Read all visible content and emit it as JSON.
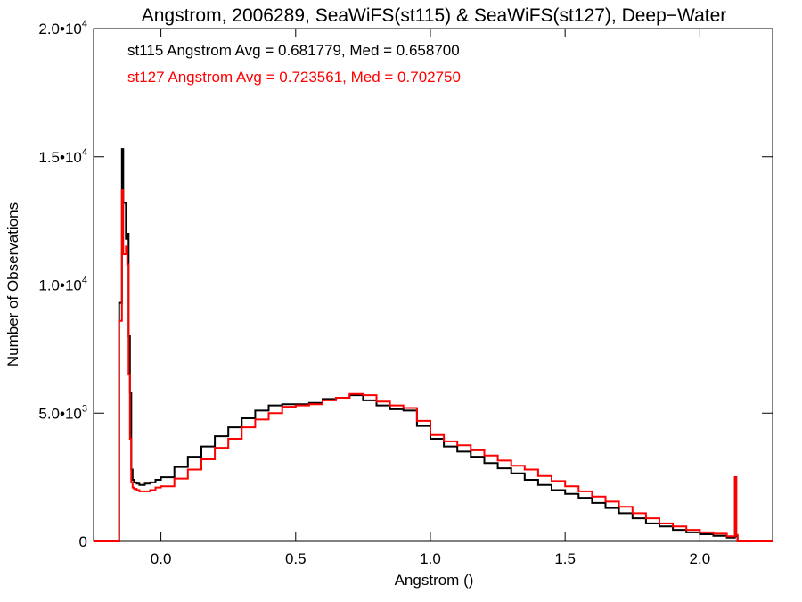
{
  "chart_data": {
    "type": "line",
    "title": "Angstrom, 2006289, SeaWiFS(st115) & SeaWiFS(st127), Deep−Water",
    "xlabel": "Angstrom ()",
    "ylabel": "Number of Observations",
    "xlim": [
      -0.25,
      2.27
    ],
    "ylim": [
      0,
      20000
    ],
    "x_ticks": [
      {
        "value": 0.0,
        "label": "0.0"
      },
      {
        "value": 0.5,
        "label": "0.5"
      },
      {
        "value": 1.0,
        "label": "1.0"
      },
      {
        "value": 1.5,
        "label": "1.5"
      },
      {
        "value": 2.0,
        "label": "2.0"
      }
    ],
    "y_ticks": [
      {
        "value": 0,
        "label": "0",
        "exp": ""
      },
      {
        "value": 5000,
        "label": "5.0•10",
        "exp": "3"
      },
      {
        "value": 10000,
        "label": "1.0•10",
        "exp": "4"
      },
      {
        "value": 15000,
        "label": "1.5•10",
        "exp": "4"
      },
      {
        "value": 20000,
        "label": "2.0•10",
        "exp": "4"
      }
    ],
    "annotations": [
      {
        "text": "st115 Angstrom Avg = 0.681779, Med = 0.658700",
        "color": "#000000"
      },
      {
        "text": "st127 Angstrom Avg = 0.723561, Med = 0.702750",
        "color": "#ff0000"
      }
    ],
    "series": [
      {
        "color": "#000000",
        "x": [
          -0.25,
          -0.16,
          -0.155,
          -0.145,
          -0.14,
          -0.13,
          -0.125,
          -0.12,
          -0.115,
          -0.11,
          -0.105,
          -0.1,
          -0.09,
          -0.08,
          -0.06,
          -0.04,
          -0.02,
          0.0,
          0.05,
          0.1,
          0.15,
          0.2,
          0.25,
          0.3,
          0.35,
          0.4,
          0.45,
          0.5,
          0.55,
          0.6,
          0.65,
          0.7,
          0.75,
          0.8,
          0.85,
          0.9,
          0.95,
          1.0,
          1.05,
          1.1,
          1.15,
          1.2,
          1.25,
          1.3,
          1.35,
          1.4,
          1.45,
          1.5,
          1.55,
          1.6,
          1.65,
          1.7,
          1.75,
          1.8,
          1.85,
          1.9,
          1.95,
          2.0,
          2.05,
          2.1,
          2.13,
          2.135,
          2.14,
          2.145,
          2.27
        ],
        "values": [
          0,
          0,
          9300,
          15300,
          13200,
          11800,
          12000,
          8000,
          5800,
          2800,
          2400,
          2300,
          2250,
          2200,
          2250,
          2300,
          2400,
          2500,
          2900,
          3300,
          3700,
          4100,
          4450,
          4800,
          5100,
          5300,
          5350,
          5350,
          5400,
          5550,
          5600,
          5700,
          5500,
          5300,
          5150,
          5100,
          4500,
          4000,
          3700,
          3500,
          3300,
          3050,
          2850,
          2650,
          2400,
          2200,
          2000,
          1850,
          1700,
          1500,
          1300,
          1100,
          900,
          700,
          580,
          450,
          350,
          280,
          220,
          150,
          2500,
          200,
          0,
          0,
          0
        ],
        "name": ""
      },
      {
        "color": "#ff0000",
        "x": [
          -0.25,
          -0.16,
          -0.155,
          -0.145,
          -0.14,
          -0.13,
          -0.125,
          -0.12,
          -0.115,
          -0.11,
          -0.105,
          -0.1,
          -0.09,
          -0.08,
          -0.06,
          -0.04,
          -0.02,
          0.0,
          0.05,
          0.1,
          0.15,
          0.2,
          0.25,
          0.3,
          0.35,
          0.4,
          0.45,
          0.5,
          0.55,
          0.6,
          0.65,
          0.7,
          0.75,
          0.8,
          0.85,
          0.9,
          0.95,
          1.0,
          1.05,
          1.1,
          1.15,
          1.2,
          1.25,
          1.3,
          1.35,
          1.4,
          1.45,
          1.5,
          1.55,
          1.6,
          1.65,
          1.7,
          1.75,
          1.8,
          1.85,
          1.9,
          1.95,
          2.0,
          2.05,
          2.1,
          2.13,
          2.135,
          2.14,
          2.145,
          2.27
        ],
        "values": [
          0,
          0,
          8600,
          13700,
          11200,
          11500,
          10800,
          6500,
          4000,
          2300,
          2100,
          2050,
          2000,
          1950,
          1950,
          2000,
          2100,
          2150,
          2450,
          2800,
          3200,
          3650,
          4000,
          4450,
          4750,
          5000,
          5250,
          5300,
          5350,
          5500,
          5600,
          5750,
          5700,
          5450,
          5300,
          5200,
          4700,
          4150,
          3900,
          3750,
          3550,
          3350,
          3150,
          2950,
          2800,
          2550,
          2350,
          2150,
          1950,
          1750,
          1550,
          1350,
          1100,
          900,
          700,
          580,
          450,
          350,
          300,
          200,
          2500,
          250,
          0,
          0,
          0
        ],
        "name": ""
      }
    ]
  }
}
